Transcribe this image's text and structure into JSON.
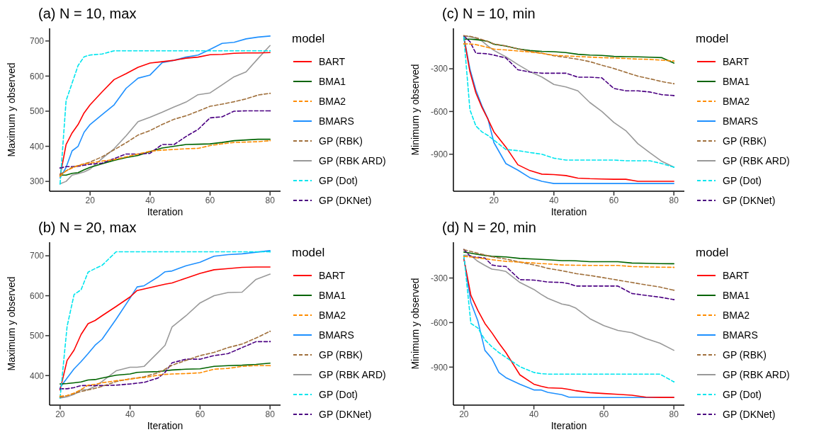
{
  "chart_data": [
    {
      "type": "line",
      "title": "(a) N = 10, max",
      "xlabel": "Iteration",
      "ylabel": "Maximum y observed",
      "legend_title": "model",
      "legend": "right",
      "grid": false,
      "x": [
        10,
        12,
        14,
        16,
        18,
        20,
        24,
        28,
        32,
        36,
        40,
        44,
        48,
        52,
        56,
        60,
        64,
        68,
        72,
        76,
        80
      ],
      "xlim": [
        6.5,
        83.5
      ],
      "xticks": [
        20,
        40,
        60,
        80
      ],
      "ylim": [
        272,
        736
      ],
      "yticks": [
        300,
        400,
        500,
        600,
        700
      ],
      "series": [
        {
          "name": "BART",
          "color": "#ff0000",
          "line_style": "solid",
          "values": [
            315,
            405,
            438,
            462,
            495,
            518,
            555,
            590,
            607,
            625,
            637,
            641,
            645,
            651,
            654,
            661,
            662,
            665,
            666,
            666,
            667
          ]
        },
        {
          "name": "BMA1",
          "color": "#006400",
          "line_style": "solid",
          "values": [
            318,
            318,
            323,
            325,
            333,
            340,
            350,
            360,
            368,
            374,
            385,
            395,
            400,
            405,
            406,
            407,
            411,
            416,
            418,
            420,
            420
          ]
        },
        {
          "name": "BMA2",
          "color": "#ff8c00",
          "line_style": "dashed",
          "values": [
            315,
            330,
            338,
            345,
            350,
            352,
            358,
            362,
            370,
            378,
            386,
            389,
            391,
            393,
            394,
            402,
            407,
            411,
            412,
            413,
            416
          ]
        },
        {
          "name": "BMARS",
          "color": "#1e90ff",
          "line_style": "solid",
          "values": [
            310,
            340,
            387,
            400,
            440,
            462,
            490,
            518,
            565,
            594,
            603,
            638,
            645,
            654,
            660,
            676,
            693,
            696,
            706,
            711,
            714
          ]
        },
        {
          "name": "GP (RBK)",
          "color": "#a0703c",
          "line_style": "dashed",
          "values": [
            320,
            330,
            340,
            345,
            350,
            355,
            370,
            390,
            410,
            432,
            445,
            462,
            477,
            487,
            500,
            514,
            520,
            527,
            535,
            546,
            551
          ]
        },
        {
          "name": "GP (RBK ARD)",
          "color": "#999999",
          "line_style": "solid",
          "values": [
            293,
            300,
            318,
            322,
            327,
            335,
            365,
            393,
            430,
            470,
            483,
            497,
            512,
            526,
            547,
            552,
            575,
            598,
            612,
            650,
            687
          ]
        },
        {
          "name": "GP (Dot)",
          "color": "#00e5ee",
          "line_style": "dashed",
          "values": [
            293,
            530,
            580,
            630,
            655,
            660,
            663,
            672,
            672,
            672,
            672,
            672,
            672,
            672,
            672,
            672,
            672,
            672,
            672,
            672,
            672
          ]
        },
        {
          "name": "GP (DKNet)",
          "color": "#4b0082",
          "line_style": "dashed",
          "values": [
            338,
            342,
            342,
            343,
            346,
            349,
            352,
            365,
            378,
            378,
            380,
            405,
            405,
            428,
            448,
            481,
            484,
            500,
            501,
            501,
            501
          ]
        }
      ]
    },
    {
      "type": "line",
      "title": "(c) N = 10, min",
      "xlabel": "Iteration",
      "ylabel": "Minimum y observed",
      "legend_title": "model",
      "legend": "right",
      "grid": false,
      "x": [
        10,
        12,
        14,
        16,
        18,
        20,
        24,
        28,
        32,
        36,
        40,
        44,
        48,
        52,
        56,
        60,
        64,
        68,
        72,
        76,
        80
      ],
      "xlim": [
        6.5,
        83.5
      ],
      "xticks": [
        20,
        40,
        60,
        80
      ],
      "ylim": [
        -1160,
        -16
      ],
      "yticks": [
        -900,
        -600,
        -300
      ],
      "series": [
        {
          "name": "BART",
          "color": "#ff0000",
          "line_style": "solid",
          "values": [
            -82,
            -320,
            -470,
            -570,
            -653,
            -743,
            -850,
            -974,
            -1015,
            -1040,
            -1043,
            -1050,
            -1068,
            -1072,
            -1074,
            -1076,
            -1076,
            -1090,
            -1090,
            -1090,
            -1090
          ]
        },
        {
          "name": "BMA1",
          "color": "#006400",
          "line_style": "solid",
          "values": [
            -92,
            -92,
            -95,
            -100,
            -108,
            -128,
            -140,
            -160,
            -172,
            -178,
            -180,
            -186,
            -198,
            -204,
            -206,
            -213,
            -215,
            -216,
            -219,
            -222,
            -260
          ]
        },
        {
          "name": "BMA2",
          "color": "#ff8c00",
          "line_style": "dashed",
          "values": [
            -125,
            -126,
            -130,
            -140,
            -150,
            -162,
            -168,
            -175,
            -182,
            -192,
            -205,
            -210,
            -214,
            -218,
            -222,
            -224,
            -228,
            -232,
            -234,
            -240,
            -246
          ]
        },
        {
          "name": "BMARS",
          "color": "#1e90ff",
          "line_style": "solid",
          "values": [
            -75,
            -300,
            -450,
            -560,
            -650,
            -818,
            -966,
            -1012,
            -1065,
            -1090,
            -1106,
            -1106,
            -1106,
            -1106,
            -1106,
            -1106,
            -1106,
            -1106,
            -1106,
            -1106,
            -1106
          ]
        },
        {
          "name": "GP (RBK)",
          "color": "#a0703c",
          "line_style": "dashed",
          "values": [
            -68,
            -72,
            -82,
            -95,
            -108,
            -125,
            -140,
            -160,
            -178,
            -190,
            -208,
            -220,
            -233,
            -250,
            -275,
            -298,
            -325,
            -352,
            -370,
            -390,
            -405
          ]
        },
        {
          "name": "GP (RBK ARD)",
          "color": "#999999",
          "line_style": "solid",
          "values": [
            -70,
            -75,
            -85,
            -105,
            -140,
            -171,
            -216,
            -270,
            -320,
            -358,
            -410,
            -428,
            -455,
            -537,
            -600,
            -677,
            -735,
            -826,
            -890,
            -950,
            -991
          ]
        },
        {
          "name": "GP (Dot)",
          "color": "#00e5ee",
          "line_style": "dashed",
          "values": [
            -80,
            -587,
            -702,
            -743,
            -768,
            -801,
            -867,
            -875,
            -888,
            -900,
            -928,
            -941,
            -941,
            -941,
            -941,
            -941,
            -946,
            -946,
            -946,
            -966,
            -991
          ]
        },
        {
          "name": "GP (DKNet)",
          "color": "#4b0082",
          "line_style": "dashed",
          "values": [
            -70,
            -109,
            -191,
            -192,
            -195,
            -204,
            -224,
            -307,
            -323,
            -331,
            -331,
            -331,
            -359,
            -359,
            -364,
            -438,
            -455,
            -455,
            -463,
            -482,
            -488
          ]
        }
      ]
    },
    {
      "type": "line",
      "title": "(b) N = 20, max",
      "xlabel": "Iteration",
      "ylabel": "Maximum y observed",
      "legend_title": "model",
      "legend": "right",
      "grid": false,
      "x": [
        20,
        22,
        24,
        26,
        28,
        30,
        32,
        36,
        40,
        42,
        44,
        48,
        50,
        52,
        56,
        60,
        64,
        68,
        72,
        76,
        80
      ],
      "xlim": [
        17,
        83
      ],
      "xticks": [
        20,
        40,
        60,
        80
      ],
      "ylim": [
        326,
        734
      ],
      "yticks": [
        400,
        500,
        600,
        700
      ],
      "series": [
        {
          "name": "BART",
          "color": "#ff0000",
          "line_style": "solid",
          "values": [
            364,
            438,
            464,
            503,
            530,
            538,
            550,
            573,
            597,
            613,
            617,
            625,
            629,
            632,
            644,
            656,
            665,
            668,
            671,
            672,
            672
          ]
        },
        {
          "name": "BMA1",
          "color": "#006400",
          "line_style": "solid",
          "values": [
            379,
            380,
            382,
            384,
            389,
            390,
            394,
            401,
            404,
            408,
            409,
            410,
            412,
            414,
            416,
            417,
            423,
            425,
            426,
            428,
            431
          ]
        },
        {
          "name": "BMA2",
          "color": "#ff8c00",
          "line_style": "dashed",
          "values": [
            348,
            350,
            356,
            365,
            376,
            378,
            382,
            387,
            391,
            394,
            395,
            401,
            403,
            404,
            405,
            407,
            416,
            418,
            423,
            425,
            425
          ]
        },
        {
          "name": "BMARS",
          "color": "#1e90ff",
          "line_style": "solid",
          "values": [
            370,
            394,
            417,
            435,
            455,
            476,
            491,
            541,
            594,
            622,
            625,
            647,
            660,
            662,
            675,
            684,
            699,
            703,
            705,
            709,
            713
          ]
        },
        {
          "name": "GP (RBK)",
          "color": "#a0703c",
          "line_style": "dashed",
          "values": [
            346,
            350,
            355,
            360,
            364,
            368,
            373,
            385,
            392,
            394,
            397,
            407,
            416,
            426,
            438,
            450,
            458,
            470,
            479,
            494,
            511
          ]
        },
        {
          "name": "GP (RBK ARD)",
          "color": "#999999",
          "line_style": "solid",
          "values": [
            344,
            347,
            353,
            364,
            365,
            373,
            385,
            412,
            421,
            421,
            423,
            458,
            476,
            522,
            550,
            582,
            600,
            608,
            609,
            641,
            654
          ]
        },
        {
          "name": "GP (Dot)",
          "color": "#00e5ee",
          "line_style": "dashed",
          "values": [
            344,
            523,
            603,
            615,
            659,
            668,
            676,
            710,
            710,
            710,
            710,
            710,
            710,
            710,
            710,
            710,
            710,
            710,
            710,
            710,
            710
          ]
        },
        {
          "name": "GP (DKNet)",
          "color": "#4b0082",
          "line_style": "dashed",
          "values": [
            367,
            367,
            370,
            375,
            375,
            375,
            375,
            376,
            379,
            381,
            383,
            394,
            408,
            432,
            441,
            441,
            450,
            455,
            470,
            485,
            485
          ]
        }
      ]
    },
    {
      "type": "line",
      "title": "(d) N = 20, min",
      "xlabel": "Iteration",
      "ylabel": "Minimum y observed",
      "legend_title": "model",
      "legend": "right",
      "grid": false,
      "x": [
        20,
        22,
        24,
        26,
        28,
        30,
        32,
        36,
        40,
        42,
        44,
        48,
        50,
        52,
        56,
        60,
        64,
        68,
        72,
        76,
        80
      ],
      "xlim": [
        17,
        83
      ],
      "xticks": [
        20,
        40,
        60,
        80
      ],
      "ylim": [
        -1156,
        -59
      ],
      "yticks": [
        -900,
        -600,
        -300
      ],
      "series": [
        {
          "name": "BART",
          "color": "#ff0000",
          "line_style": "solid",
          "values": [
            -172,
            -417,
            -519,
            -606,
            -669,
            -739,
            -802,
            -952,
            -1015,
            -1028,
            -1039,
            -1043,
            -1050,
            -1059,
            -1072,
            -1078,
            -1083,
            -1089,
            -1102,
            -1104,
            -1104
          ]
        },
        {
          "name": "BMA1",
          "color": "#006400",
          "line_style": "solid",
          "values": [
            -125,
            -133,
            -141,
            -148,
            -154,
            -156,
            -158,
            -168,
            -172,
            -175,
            -177,
            -183,
            -183,
            -184,
            -190,
            -190,
            -190,
            -199,
            -201,
            -203,
            -204
          ]
        },
        {
          "name": "BMA2",
          "color": "#ff8c00",
          "line_style": "dashed",
          "values": [
            -154,
            -158,
            -165,
            -170,
            -177,
            -182,
            -188,
            -193,
            -199,
            -203,
            -205,
            -212,
            -213,
            -214,
            -215,
            -215,
            -215,
            -223,
            -225,
            -227,
            -228
          ]
        },
        {
          "name": "BMARS",
          "color": "#1e90ff",
          "line_style": "solid",
          "values": [
            -165,
            -464,
            -590,
            -787,
            -842,
            -936,
            -971,
            -1015,
            -1054,
            -1054,
            -1070,
            -1086,
            -1102,
            -1102,
            -1105,
            -1105,
            -1105,
            -1105,
            -1105,
            -1105,
            -1105
          ]
        },
        {
          "name": "GP (RBK)",
          "color": "#a0703c",
          "line_style": "dashed",
          "values": [
            -109,
            -121,
            -133,
            -145,
            -157,
            -165,
            -172,
            -193,
            -212,
            -222,
            -235,
            -251,
            -260,
            -270,
            -283,
            -298,
            -314,
            -330,
            -346,
            -361,
            -382
          ]
        },
        {
          "name": "GP (RBK ARD)",
          "color": "#999999",
          "line_style": "solid",
          "values": [
            -146,
            -149,
            -188,
            -215,
            -240,
            -246,
            -256,
            -330,
            -377,
            -409,
            -437,
            -475,
            -484,
            -503,
            -574,
            -621,
            -653,
            -668,
            -708,
            -739,
            -787
          ]
        },
        {
          "name": "GP (Dot)",
          "color": "#00e5ee",
          "line_style": "dashed",
          "values": [
            -149,
            -606,
            -637,
            -716,
            -763,
            -802,
            -834,
            -897,
            -936,
            -944,
            -947,
            -947,
            -947,
            -947,
            -947,
            -947,
            -947,
            -947,
            -947,
            -947,
            -999
          ]
        },
        {
          "name": "GP (DKNet)",
          "color": "#4b0082",
          "line_style": "dashed",
          "values": [
            -109,
            -157,
            -161,
            -165,
            -212,
            -220,
            -222,
            -311,
            -314,
            -320,
            -327,
            -330,
            -338,
            -354,
            -354,
            -354,
            -354,
            -404,
            -417,
            -429,
            -445
          ]
        }
      ]
    }
  ]
}
